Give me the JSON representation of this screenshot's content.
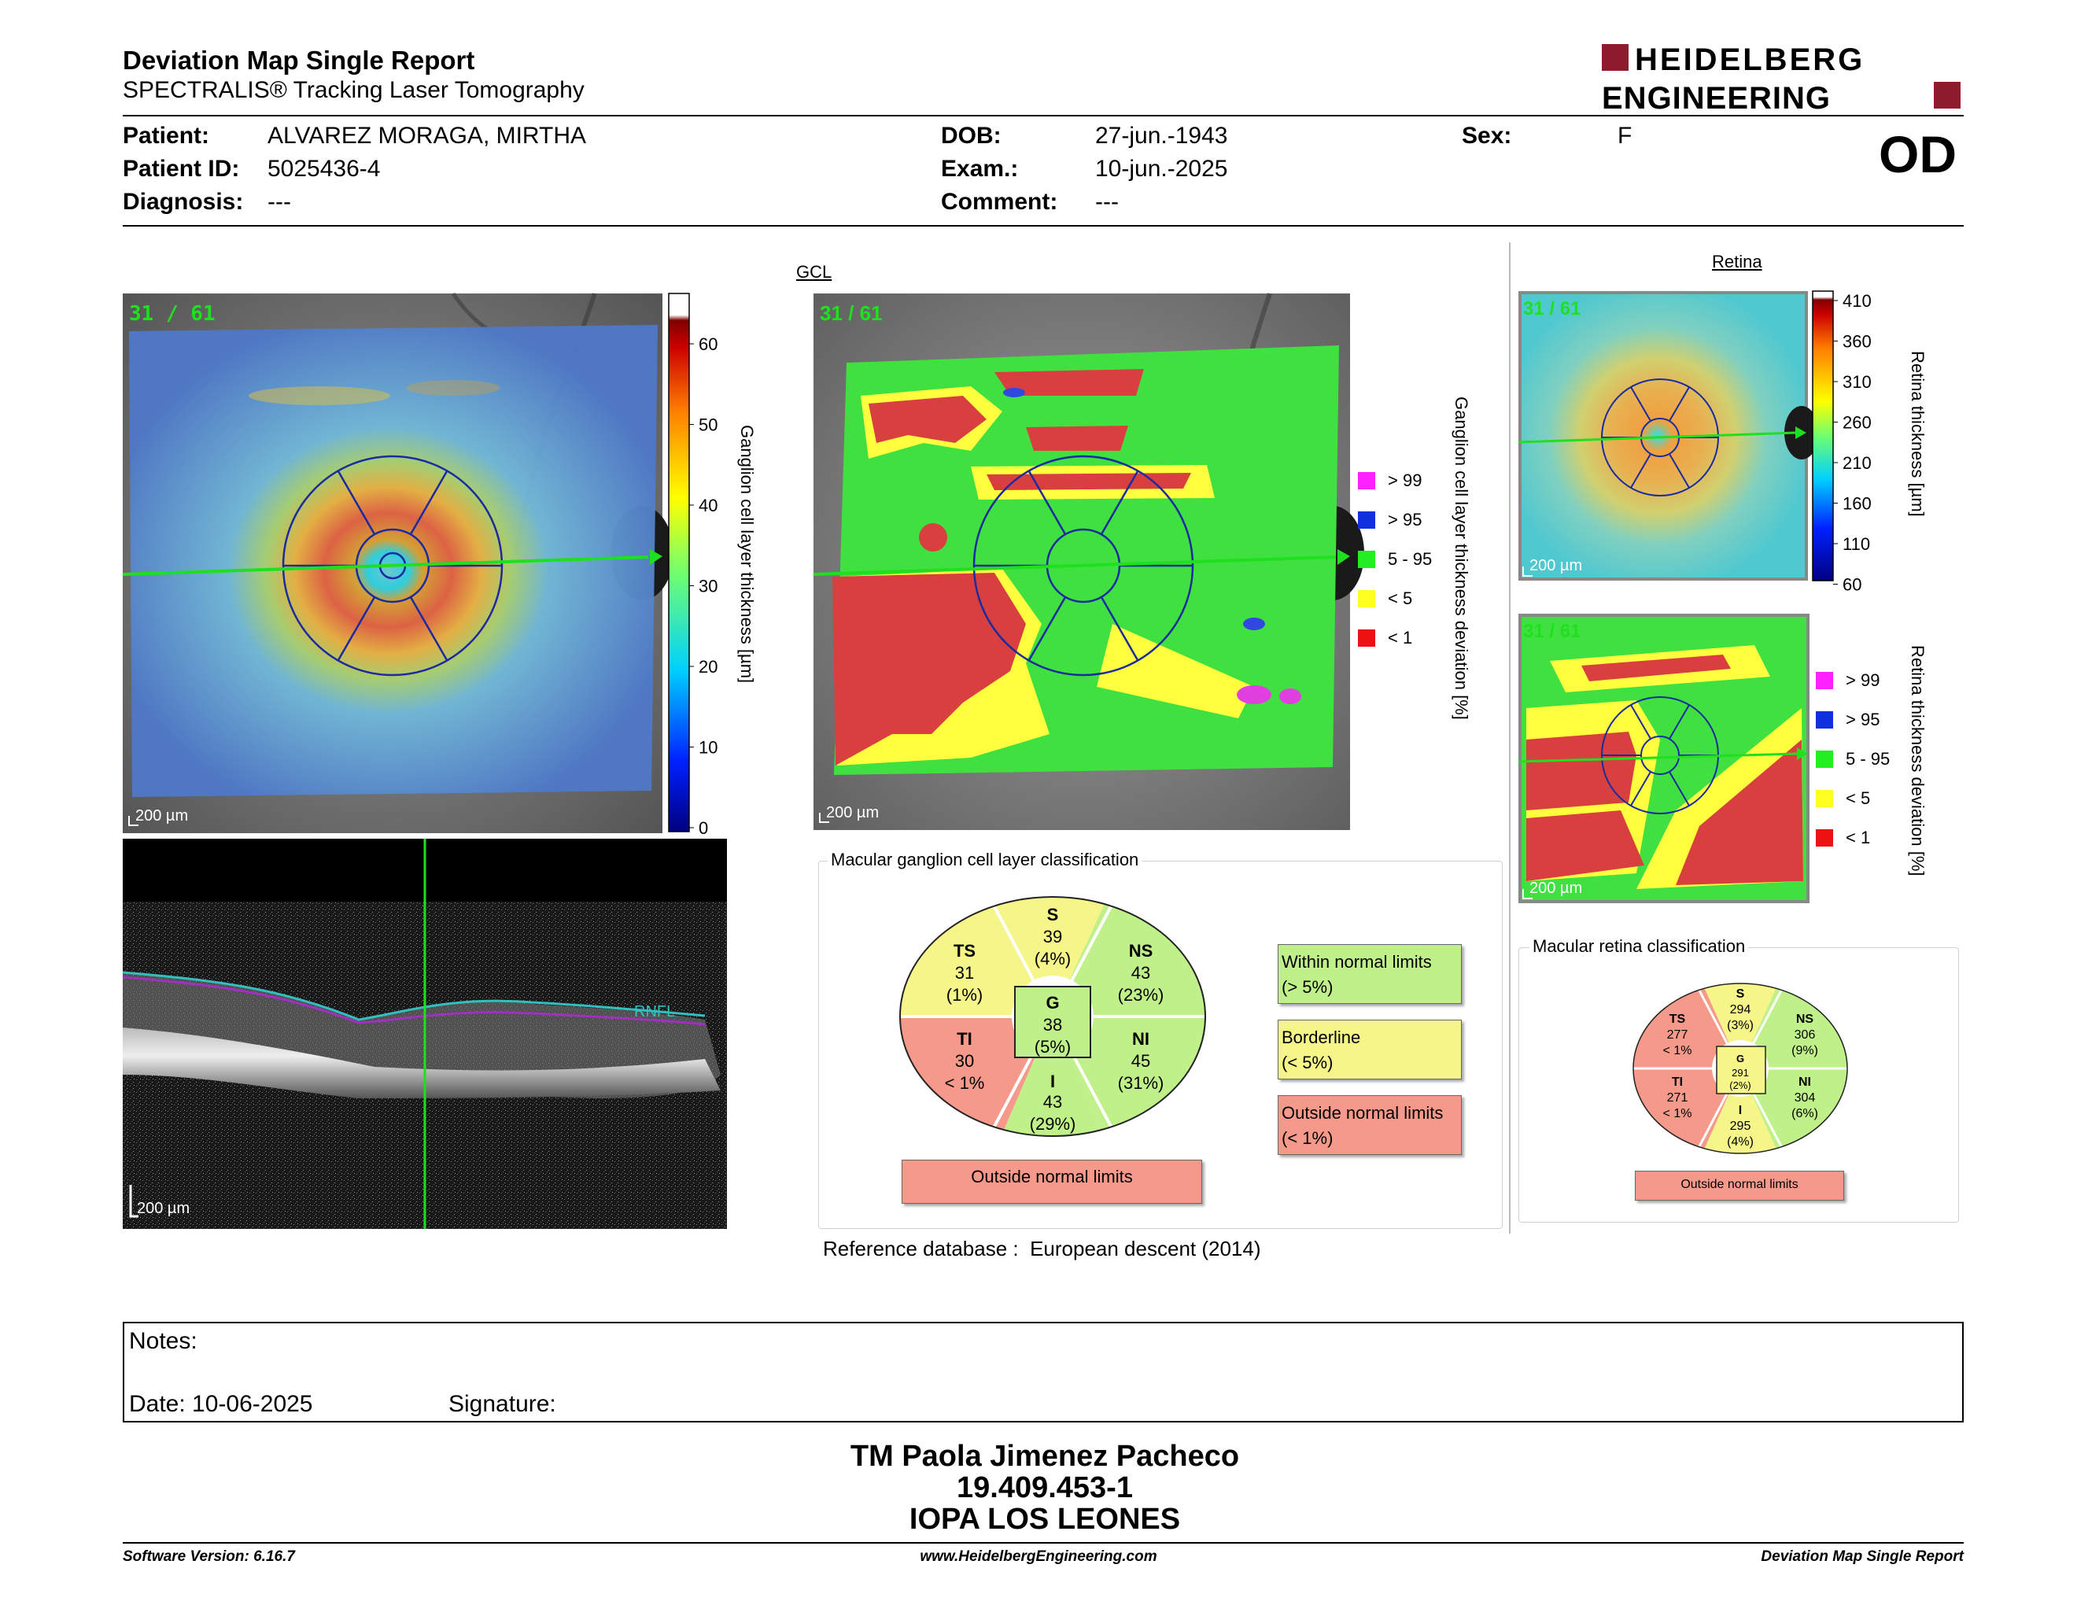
{
  "header": {
    "title": "Deviation Map Single Report",
    "subtitle": "SPECTRALIS® Tracking Laser Tomography",
    "logo_line1": "HEIDELBERG",
    "logo_line2": "ENGINEERING",
    "eye": "OD"
  },
  "patient": {
    "patient_label": "Patient:",
    "patient_value": "ALVAREZ MORAGA, MIRTHA",
    "id_label": "Patient ID:",
    "id_value": "5025436-4",
    "diagnosis_label": "Diagnosis:",
    "diagnosis_value": "---",
    "dob_label": "DOB:",
    "dob_value": "27-jun.-1943",
    "exam_label": "Exam.:",
    "exam_value": "10-jun.-2025",
    "comment_label": "Comment:",
    "comment_value": "---",
    "sex_label": "Sex:",
    "sex_value": "F"
  },
  "maps": {
    "frame_tag": "31 / 61",
    "scale": "200 µm",
    "gcl_header": "GCL",
    "retina_header": "Retina",
    "gcl_thickness_label": "Ganglion cell layer thickness [µm]",
    "gcl_thickness_ticks": [
      "60",
      "50",
      "40",
      "30",
      "20",
      "10",
      "0"
    ],
    "gcl_deviation_label": "Ganglion cell layer thickness deviation [%]",
    "retina_thickness_label": "Retina thickness [µm]",
    "retina_thickness_ticks": [
      "410",
      "360",
      "310",
      "260",
      "210",
      "160",
      "110",
      "60"
    ],
    "retina_deviation_label": "Retina thickness deviation [%]",
    "deviation_legend": [
      {
        "label": "> 99",
        "color": "#ff22ff"
      },
      {
        "label": "> 95",
        "color": "#1030e0"
      },
      {
        "label": "5 - 95",
        "color": "#22ee22"
      },
      {
        "label": "< 5",
        "color": "#ffff22"
      },
      {
        "label": "< 1",
        "color": "#ee1111"
      }
    ],
    "bscan_layer_label": "RNFL"
  },
  "gcl_classification": {
    "title": "Macular ganglion cell layer classification",
    "S": {
      "name": "S",
      "value": "39",
      "pct": "(4%)"
    },
    "NS": {
      "name": "NS",
      "value": "43",
      "pct": "(23%)"
    },
    "NI": {
      "name": "NI",
      "value": "45",
      "pct": "(31%)"
    },
    "I": {
      "name": "I",
      "value": "43",
      "pct": "(29%)"
    },
    "TI": {
      "name": "TI",
      "value": "30",
      "pct": "< 1%"
    },
    "TS": {
      "name": "TS",
      "value": "31",
      "pct": "(1%)"
    },
    "G": {
      "name": "G",
      "value": "38",
      "pct": "(5%)"
    },
    "result": "Outside normal limits",
    "legend": [
      {
        "line1": "Within normal limits",
        "line2": "(> 5%)",
        "color": "#bff08a"
      },
      {
        "line1": "Borderline",
        "line2": "(< 5%)",
        "color": "#f5f58a"
      },
      {
        "line1": "Outside normal limits",
        "line2": "(< 1%)",
        "color": "#f59a8a"
      }
    ]
  },
  "retina_classification": {
    "title": "Macular retina classification",
    "S": {
      "name": "S",
      "value": "294",
      "pct": "(3%)"
    },
    "NS": {
      "name": "NS",
      "value": "306",
      "pct": "(9%)"
    },
    "NI": {
      "name": "NI",
      "value": "304",
      "pct": "(6%)"
    },
    "I": {
      "name": "I",
      "value": "295",
      "pct": "(4%)"
    },
    "TI": {
      "name": "TI",
      "value": "271",
      "pct": "< 1%"
    },
    "TS": {
      "name": "TS",
      "value": "277",
      "pct": "< 1%"
    },
    "G": {
      "name": "G",
      "value": "291",
      "pct": "(2%)"
    },
    "result": "Outside normal limits"
  },
  "reference": {
    "label": "Reference database :",
    "value": "European descent (2014)"
  },
  "notes": {
    "notes_label": "Notes:",
    "date_label": "Date: 10-06-2025",
    "signature_label": "Signature:"
  },
  "signoff": {
    "name": "TM Paola Jimenez Pacheco",
    "id": "19.409.453-1",
    "org": "IOPA LOS LEONES"
  },
  "footer": {
    "software": "Software Version: 6.16.7",
    "website": "www.HeidelbergEngineering.com",
    "report": "Deviation Map Single Report"
  },
  "colors": {
    "green_class": "#bff08a",
    "yellow_class": "#f5f58a",
    "red_class": "#f59a8a",
    "logo_red": "#8e1b2e"
  }
}
